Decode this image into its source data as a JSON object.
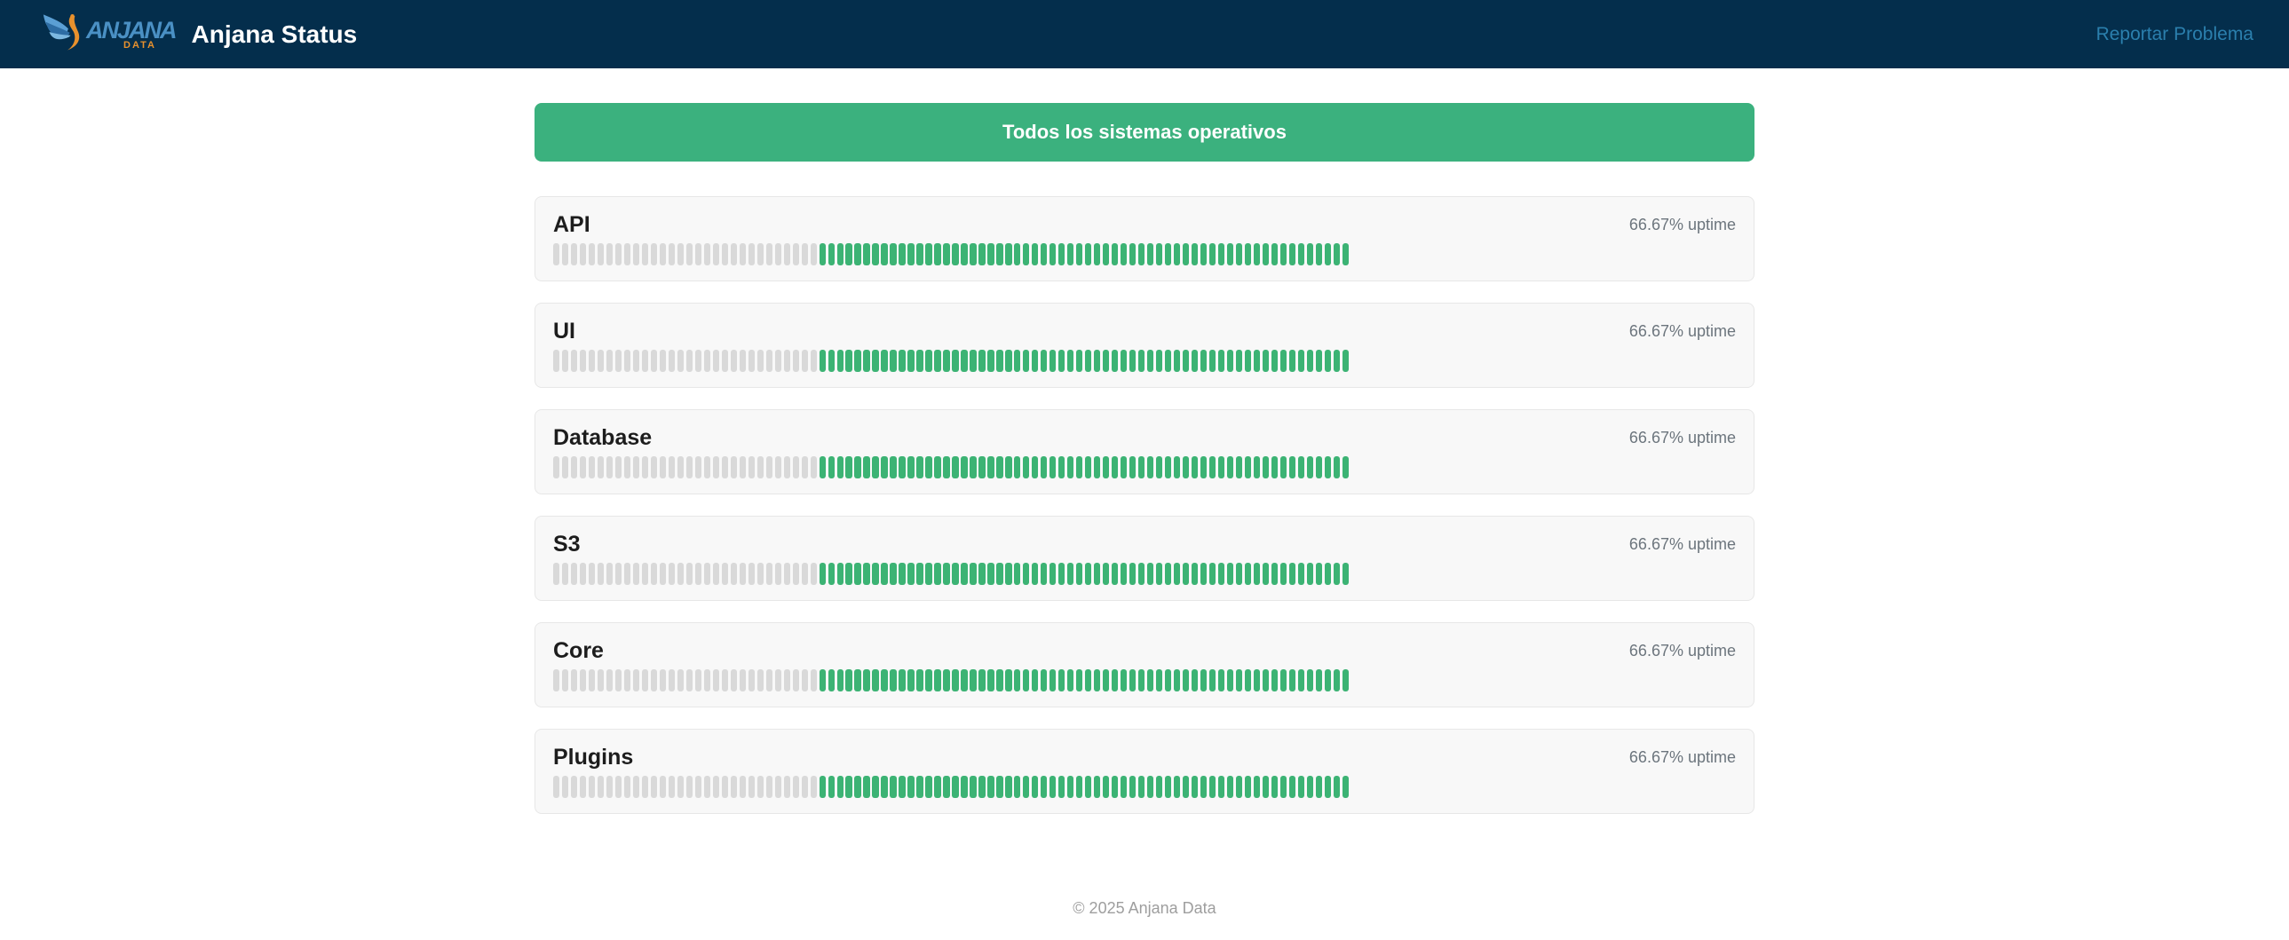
{
  "header": {
    "logo_brand": "ANJANA",
    "logo_sub": "DATA",
    "title": "Anjana Status",
    "report_link_label": "Reportar Problema"
  },
  "overall_status": {
    "label": "Todos los sistemas operativos"
  },
  "uptime_chart": {
    "type": "bar",
    "bars_per_service": 90,
    "statuses": {
      "nodata": "no data (gray)",
      "operational": "operational (green)"
    }
  },
  "services": [
    {
      "name": "API",
      "uptime_label": "66.67% uptime",
      "bars": {
        "nodata": 30,
        "operational": 60
      }
    },
    {
      "name": "UI",
      "uptime_label": "66.67% uptime",
      "bars": {
        "nodata": 30,
        "operational": 60
      }
    },
    {
      "name": "Database",
      "uptime_label": "66.67% uptime",
      "bars": {
        "nodata": 30,
        "operational": 60
      }
    },
    {
      "name": "S3",
      "uptime_label": "66.67% uptime",
      "bars": {
        "nodata": 30,
        "operational": 60
      }
    },
    {
      "name": "Core",
      "uptime_label": "66.67% uptime",
      "bars": {
        "nodata": 30,
        "operational": 60
      }
    },
    {
      "name": "Plugins",
      "uptime_label": "66.67% uptime",
      "bars": {
        "nodata": 30,
        "operational": 60
      }
    }
  ],
  "footer": {
    "copyright": "© 2025 Anjana Data"
  },
  "colors": {
    "header_bg": "#042e4c",
    "green": "#3bb17e",
    "bar_green": "#3cb374",
    "bar_gray": "#d9d9d9",
    "link_blue": "#2b7fad"
  }
}
